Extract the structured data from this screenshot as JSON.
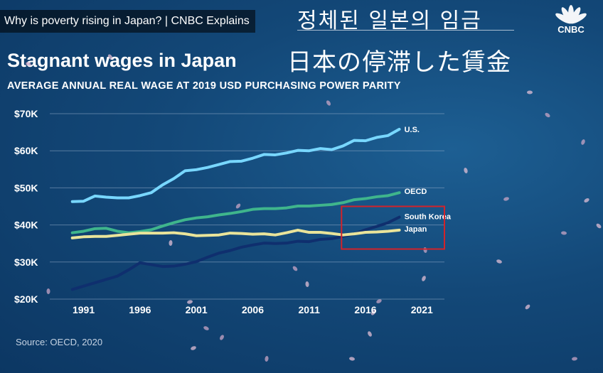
{
  "video": {
    "title": "Why is poverty rising in Japan? | CNBC Explains",
    "overlay_korean": "정체된  일본의 임금",
    "overlay_japanese": "日本の停滞した賃金",
    "logo_text": "CNBC"
  },
  "chart_data": {
    "type": "line",
    "title": "Stagnant wages in Japan",
    "subtitle": "AVERAGE ANNUAL REAL WAGE AT 2019 USD PURCHASING POWER PARITY",
    "source": "Source: OECD, 2020",
    "xlim": [
      1988,
      2023
    ],
    "ylim": [
      20000,
      70000
    ],
    "xticks": [
      {
        "value": 1991,
        "label": "1991"
      },
      {
        "value": 1996,
        "label": "1996"
      },
      {
        "value": 2001,
        "label": "2001"
      },
      {
        "value": 2006,
        "label": "2006"
      },
      {
        "value": 2011,
        "label": "2011"
      },
      {
        "value": 2016,
        "label": "2016"
      },
      {
        "value": 2021,
        "label": "2021"
      }
    ],
    "yticks": [
      {
        "value": 20000,
        "label": "$20K"
      },
      {
        "value": 30000,
        "label": "$30K"
      },
      {
        "value": 40000,
        "label": "$40K"
      },
      {
        "value": 50000,
        "label": "$50K"
      },
      {
        "value": 60000,
        "label": "$60K"
      },
      {
        "value": 70000,
        "label": "$70K"
      }
    ],
    "grid": true,
    "highlight_box": {
      "x": [
        2014,
        2023
      ],
      "y": [
        33500,
        45000
      ],
      "color": "#d2232a"
    },
    "x": [
      1990,
      1991,
      1992,
      1993,
      1994,
      1995,
      1996,
      1997,
      1998,
      1999,
      2000,
      2001,
      2002,
      2003,
      2004,
      2005,
      2006,
      2007,
      2008,
      2009,
      2010,
      2011,
      2012,
      2013,
      2014,
      2015,
      2016,
      2017,
      2018,
      2019
    ],
    "series": [
      {
        "name": "U.S.",
        "color": "#78d7ff",
        "values": [
          46300,
          46400,
          47800,
          47500,
          47300,
          47300,
          47900,
          48700,
          50800,
          52500,
          54600,
          54900,
          55500,
          56300,
          57100,
          57200,
          58000,
          59000,
          58900,
          59400,
          60100,
          60000,
          60600,
          60300,
          61300,
          62800,
          62700,
          63600,
          64100,
          65800
        ]
      },
      {
        "name": "OECD",
        "color": "#3fb58c",
        "values": [
          37900,
          38300,
          39000,
          39100,
          38300,
          37900,
          38200,
          38700,
          39700,
          40600,
          41400,
          41900,
          42200,
          42700,
          43100,
          43600,
          44200,
          44400,
          44400,
          44600,
          45100,
          45100,
          45300,
          45500,
          46000,
          46800,
          47100,
          47600,
          47900,
          48700
        ]
      },
      {
        "name": "South Korea",
        "color": "#0f2f6e",
        "values": [
          22600,
          23500,
          24400,
          25300,
          26200,
          27900,
          29800,
          29300,
          28800,
          28900,
          29400,
          30100,
          31300,
          32400,
          33100,
          34000,
          34600,
          35100,
          35000,
          35100,
          35600,
          35500,
          36100,
          36300,
          36900,
          37600,
          38700,
          39600,
          40600,
          42100
        ]
      },
      {
        "name": "Japan",
        "color": "#e9e49a",
        "values": [
          36500,
          36800,
          36900,
          36900,
          37200,
          37500,
          37800,
          37800,
          37800,
          37900,
          37600,
          37100,
          37200,
          37300,
          37800,
          37700,
          37500,
          37600,
          37300,
          37900,
          38600,
          38000,
          38000,
          37700,
          37300,
          37600,
          38000,
          38100,
          38300,
          38600
        ]
      }
    ]
  }
}
